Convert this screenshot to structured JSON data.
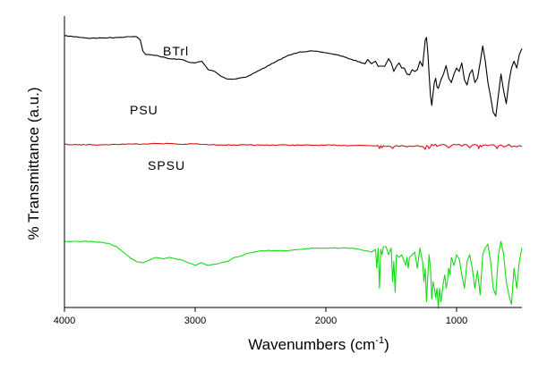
{
  "chart_data": {
    "type": "line",
    "title": "",
    "xlabel": "Wavenumbers (cm",
    "xlabel_sup": "-1",
    "xlabel_close": ")",
    "ylabel": "% Transmittance (a.u.)",
    "xlim": [
      4000,
      500
    ],
    "x_reversed": true,
    "y_ticks_shown": false,
    "grid": false,
    "legend": "labels placed on curves",
    "x_ticks": [
      4000,
      3000,
      2000,
      1000
    ],
    "x_tick_labels": [
      "4000",
      "3000",
      "2000",
      "1000"
    ],
    "series": [
      {
        "name": "BTrl",
        "color": "#000000",
        "noise": 0.4,
        "x": [
          4000,
          3800,
          3600,
          3500,
          3450,
          3420,
          3400,
          3380,
          3300,
          3200,
          3100,
          3050,
          3000,
          2950,
          2900,
          2850,
          2800,
          2750,
          2700,
          2600,
          2500,
          2400,
          2300,
          2200,
          2100,
          2000,
          1900,
          1800,
          1700,
          1680,
          1650,
          1620,
          1600,
          1550,
          1520,
          1500,
          1480,
          1460,
          1440,
          1420,
          1400,
          1380,
          1360,
          1340,
          1320,
          1300,
          1280,
          1260,
          1240,
          1230,
          1220,
          1210,
          1200,
          1190,
          1180,
          1170,
          1160,
          1150,
          1140,
          1120,
          1100,
          1080,
          1060,
          1040,
          1020,
          1000,
          980,
          960,
          940,
          920,
          900,
          880,
          860,
          840,
          820,
          800,
          780,
          760,
          740,
          720,
          700,
          680,
          660,
          640,
          620,
          600,
          580,
          560,
          540,
          520,
          500
        ],
        "y": [
          1.0,
          0.97,
          0.98,
          0.99,
          0.99,
          0.95,
          0.82,
          0.78,
          0.77,
          0.73,
          0.72,
          0.69,
          0.68,
          0.7,
          0.6,
          0.58,
          0.52,
          0.49,
          0.49,
          0.52,
          0.6,
          0.68,
          0.76,
          0.81,
          0.82,
          0.8,
          0.77,
          0.72,
          0.67,
          0.72,
          0.67,
          0.7,
          0.64,
          0.64,
          0.73,
          0.68,
          0.58,
          0.64,
          0.68,
          0.62,
          0.62,
          0.55,
          0.54,
          0.6,
          0.58,
          0.6,
          0.7,
          0.64,
          0.95,
          0.98,
          0.8,
          0.55,
          0.3,
          0.18,
          0.32,
          0.45,
          0.5,
          0.4,
          0.38,
          0.48,
          0.55,
          0.65,
          0.5,
          0.45,
          0.55,
          0.62,
          0.58,
          0.68,
          0.48,
          0.42,
          0.55,
          0.6,
          0.45,
          0.5,
          0.68,
          0.88,
          0.7,
          0.45,
          0.28,
          0.1,
          0.05,
          0.3,
          0.55,
          0.35,
          0.2,
          0.45,
          0.62,
          0.7,
          0.62,
          0.78,
          0.85
        ]
      },
      {
        "name": "PSU",
        "color": "#dd1111",
        "noise": 0.45,
        "x": [
          4000,
          3900,
          3800,
          3700,
          3600,
          3500,
          3400,
          3300,
          3200,
          3100,
          3000,
          2950,
          2900,
          2800,
          2700,
          2600,
          2500,
          2400,
          2300,
          2200,
          2100,
          2000,
          1900,
          1800,
          1700,
          1650,
          1620,
          1600,
          1590,
          1580,
          1570,
          1560,
          1550,
          1520,
          1500,
          1490,
          1480,
          1470,
          1460,
          1440,
          1420,
          1400,
          1380,
          1360,
          1340,
          1320,
          1300,
          1280,
          1260,
          1250,
          1240,
          1230,
          1220,
          1210,
          1200,
          1190,
          1180,
          1160,
          1150,
          1140,
          1120,
          1100,
          1080,
          1060,
          1040,
          1020,
          1000,
          980,
          960,
          940,
          920,
          900,
          880,
          860,
          840,
          830,
          820,
          810,
          800,
          790,
          780,
          760,
          740,
          720,
          700,
          690,
          680,
          660,
          640,
          620,
          600,
          580,
          560,
          540,
          520,
          500
        ],
        "y": [
          0.5,
          0.49,
          0.495,
          0.49,
          0.5,
          0.51,
          0.51,
          0.52,
          0.52,
          0.5,
          0.515,
          0.5,
          0.49,
          0.49,
          0.485,
          0.485,
          0.48,
          0.485,
          0.485,
          0.48,
          0.48,
          0.48,
          0.478,
          0.475,
          0.475,
          0.47,
          0.465,
          0.47,
          0.4,
          0.47,
          0.42,
          0.47,
          0.45,
          0.46,
          0.44,
          0.4,
          0.44,
          0.46,
          0.47,
          0.45,
          0.47,
          0.46,
          0.44,
          0.46,
          0.45,
          0.46,
          0.47,
          0.45,
          0.45,
          0.42,
          0.38,
          0.47,
          0.46,
          0.4,
          0.44,
          0.5,
          0.47,
          0.5,
          0.45,
          0.47,
          0.49,
          0.5,
          0.47,
          0.42,
          0.47,
          0.5,
          0.49,
          0.5,
          0.46,
          0.5,
          0.49,
          0.42,
          0.48,
          0.5,
          0.47,
          0.4,
          0.48,
          0.44,
          0.48,
          0.48,
          0.49,
          0.47,
          0.49,
          0.49,
          0.45,
          0.4,
          0.46,
          0.49,
          0.44,
          0.46,
          0.5,
          0.44,
          0.46,
          0.44,
          0.47,
          0.45
        ]
      },
      {
        "name": "SPSU",
        "color": "#11dd11",
        "noise": 0.35,
        "x": [
          4000,
          3900,
          3800,
          3700,
          3650,
          3600,
          3550,
          3500,
          3450,
          3400,
          3350,
          3300,
          3250,
          3200,
          3150,
          3100,
          3050,
          3000,
          2950,
          2900,
          2850,
          2800,
          2750,
          2700,
          2650,
          2600,
          2500,
          2400,
          2300,
          2200,
          2100,
          2000,
          1900,
          1800,
          1700,
          1650,
          1620,
          1610,
          1600,
          1590,
          1580,
          1570,
          1560,
          1540,
          1520,
          1500,
          1490,
          1480,
          1470,
          1460,
          1440,
          1420,
          1400,
          1390,
          1380,
          1370,
          1360,
          1340,
          1320,
          1300,
          1280,
          1260,
          1250,
          1240,
          1230,
          1220,
          1210,
          1200,
          1190,
          1180,
          1170,
          1160,
          1150,
          1140,
          1130,
          1120,
          1110,
          1100,
          1090,
          1080,
          1070,
          1060,
          1050,
          1040,
          1020,
          1000,
          980,
          960,
          940,
          920,
          900,
          880,
          860,
          840,
          820,
          800,
          780,
          760,
          740,
          720,
          700,
          680,
          660,
          640,
          620,
          600,
          580,
          560,
          540,
          520,
          500
        ],
        "y": [
          0.4,
          0.4,
          0.4,
          0.39,
          0.38,
          0.36,
          0.32,
          0.28,
          0.25,
          0.24,
          0.26,
          0.28,
          0.27,
          0.28,
          0.27,
          0.26,
          0.24,
          0.22,
          0.24,
          0.22,
          0.23,
          0.24,
          0.25,
          0.28,
          0.29,
          0.31,
          0.33,
          0.33,
          0.33,
          0.34,
          0.35,
          0.35,
          0.35,
          0.35,
          0.33,
          0.32,
          0.34,
          0.2,
          0.35,
          0.05,
          0.34,
          0.3,
          0.36,
          0.36,
          0.3,
          0.35,
          0.1,
          0.25,
          0.02,
          0.3,
          0.28,
          0.3,
          0.25,
          0.22,
          0.28,
          0.2,
          0.28,
          0.3,
          0.32,
          0.2,
          0.35,
          0.25,
          0.1,
          0.2,
          -0.05,
          0.15,
          0.3,
          0.2,
          -0.03,
          0.1,
          0.05,
          -0.02,
          0.05,
          -0.1,
          0.05,
          -0.05,
          0.02,
          0.1,
          0.15,
          0.05,
          0.1,
          0.2,
          0.15,
          0.28,
          0.22,
          0.3,
          0.27,
          0.15,
          0.05,
          0.25,
          0.3,
          0.2,
          0.05,
          0.18,
          0.0,
          0.3,
          0.35,
          0.38,
          0.25,
          0.05,
          0.0,
          0.3,
          0.4,
          0.3,
          0.1,
          0.0,
          -0.07,
          0.2,
          0.05,
          0.25,
          0.35
        ]
      }
    ]
  }
}
